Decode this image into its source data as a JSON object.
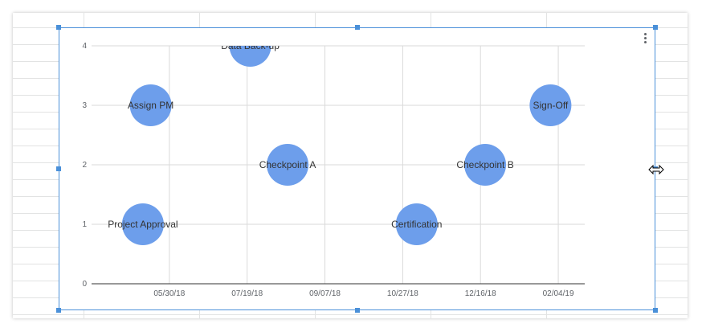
{
  "chart_data": {
    "type": "scatter",
    "title": "",
    "xlabel": "",
    "ylabel": "",
    "x_ticks": [
      "05/30/18",
      "07/19/18",
      "09/07/18",
      "10/27/18",
      "12/16/18",
      "02/04/19"
    ],
    "x_tick_dates": [
      "2018-05-30",
      "2018-07-19",
      "2018-09-07",
      "2018-10-27",
      "2018-12-16",
      "2019-02-04"
    ],
    "xlim": [
      "2018-04-10",
      "2019-02-21"
    ],
    "ylim": [
      0,
      4
    ],
    "y_ticks": [
      0,
      1,
      2,
      3,
      4
    ],
    "grid": true,
    "legend": "none",
    "bubble_color": "#6d9eeb",
    "points": [
      {
        "label": "Project Approval",
        "x": "2018-05-13",
        "y": 1
      },
      {
        "label": "Assign PM",
        "x": "2018-05-18",
        "y": 3
      },
      {
        "label": "Data Back-up",
        "x": "2018-07-21",
        "y": 4
      },
      {
        "label": "Checkpoint A",
        "x": "2018-08-14",
        "y": 2
      },
      {
        "label": "Certification",
        "x": "2018-11-05",
        "y": 1
      },
      {
        "label": "Checkpoint B",
        "x": "2018-12-19",
        "y": 2
      },
      {
        "label": "Sign-Off",
        "x": "2019-01-30",
        "y": 3
      }
    ]
  },
  "ui": {
    "menu_icon": "more-vert-icon",
    "resize_icon": "horizontal-resize-cursor-icon",
    "selection_color": "#4a90d9"
  }
}
